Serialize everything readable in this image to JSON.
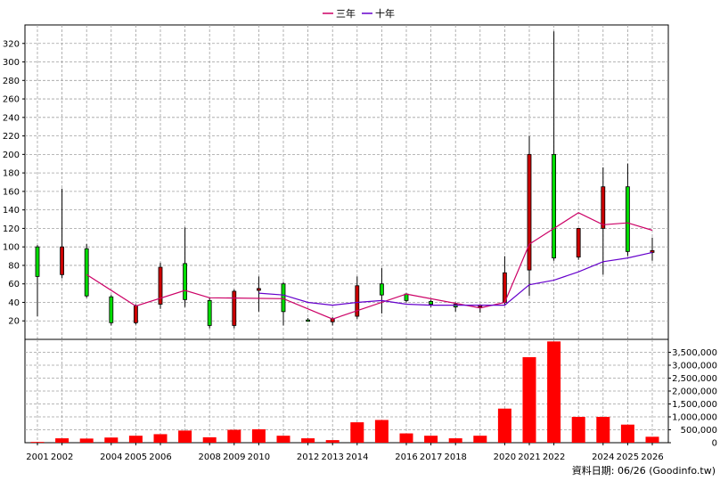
{
  "legend": [
    {
      "label": "三年",
      "color": "#cc0066"
    },
    {
      "label": "十年",
      "color": "#6600cc"
    }
  ],
  "credit": "資料日期: 06/26 (Goodinfo.tw)",
  "colors": {
    "up": "#00dd00",
    "down": "#cc0000",
    "volume": "#ff0000",
    "grid": "#a0a0a0"
  },
  "chart_data": [
    {
      "type": "candlestick",
      "ylim": [
        0,
        340
      ],
      "y_ticks": [
        20,
        40,
        60,
        80,
        100,
        120,
        140,
        160,
        180,
        200,
        220,
        240,
        260,
        280,
        300,
        320
      ],
      "x_tick_labels": [
        "2001",
        "2002",
        "2004",
        "2005",
        "2006",
        "2008",
        "2009",
        "2010",
        "2012",
        "2013",
        "2014",
        "2016",
        "2017",
        "2018",
        "2020",
        "2021",
        "2022",
        "2024",
        "2025",
        "2026"
      ],
      "x_tick_positions": [
        1,
        2,
        4,
        5,
        6,
        8,
        9,
        10,
        12,
        13,
        14,
        16,
        17,
        18,
        20,
        21,
        22,
        24,
        25,
        26
      ],
      "candles": [
        {
          "x": 1,
          "open": 68,
          "close": 100,
          "high": 102,
          "low": 25
        },
        {
          "x": 2,
          "open": 100,
          "close": 70,
          "high": 163,
          "low": 66
        },
        {
          "x": 3,
          "open": 47,
          "close": 98,
          "high": 103,
          "low": 45
        },
        {
          "x": 4,
          "open": 18,
          "close": 46,
          "high": 48,
          "low": 15
        },
        {
          "x": 5,
          "open": 36,
          "close": 18,
          "high": 38,
          "low": 16
        },
        {
          "x": 6,
          "open": 78,
          "close": 38,
          "high": 83,
          "low": 33
        },
        {
          "x": 7,
          "open": 43,
          "close": 82,
          "high": 121,
          "low": 35
        },
        {
          "x": 8,
          "open": 15,
          "close": 42,
          "high": 45,
          "low": 12
        },
        {
          "x": 9,
          "open": 52,
          "close": 15,
          "high": 54,
          "low": 12
        },
        {
          "x": 10,
          "open": 55,
          "close": 53,
          "high": 68,
          "low": 30
        },
        {
          "x": 11,
          "open": 30,
          "close": 60,
          "high": 62,
          "low": 15
        },
        {
          "x": 12,
          "open": 20,
          "close": 21,
          "high": 23,
          "low": 19
        },
        {
          "x": 13,
          "open": 22,
          "close": 19,
          "high": 24,
          "low": 15
        },
        {
          "x": 14,
          "open": 58,
          "close": 25,
          "high": 68,
          "low": 22
        },
        {
          "x": 15,
          "open": 48,
          "close": 60,
          "high": 77,
          "low": 28
        },
        {
          "x": 16,
          "open": 42,
          "close": 49,
          "high": 50,
          "low": 40
        },
        {
          "x": 17,
          "open": 38,
          "close": 41,
          "high": 43,
          "low": 35
        },
        {
          "x": 18,
          "open": 35,
          "close": 38,
          "high": 40,
          "low": 30
        },
        {
          "x": 19,
          "open": 37,
          "close": 35,
          "high": 38,
          "low": 29
        },
        {
          "x": 20,
          "open": 72,
          "close": 40,
          "high": 90,
          "low": 37
        },
        {
          "x": 21,
          "open": 200,
          "close": 75,
          "high": 220,
          "low": 47
        },
        {
          "x": 22,
          "open": 88,
          "close": 200,
          "high": 333,
          "low": 85
        },
        {
          "x": 23,
          "open": 120,
          "close": 89,
          "high": 120,
          "low": 86
        },
        {
          "x": 24,
          "open": 165,
          "close": 120,
          "high": 186,
          "low": 70
        },
        {
          "x": 25,
          "open": 95,
          "close": 165,
          "high": 190,
          "low": 90
        },
        {
          "x": 26,
          "open": 96,
          "close": 94,
          "high": 110,
          "low": 85
        }
      ],
      "series": [
        {
          "name": "三年",
          "color": "#cc0066",
          "points": [
            [
              3,
              70
            ],
            [
              5,
              36
            ],
            [
              7,
              53
            ],
            [
              8,
              45
            ],
            [
              11,
              44
            ],
            [
              13,
              22
            ],
            [
              16,
              49
            ],
            [
              19,
              34
            ],
            [
              20,
              40
            ],
            [
              21,
              103
            ],
            [
              23,
              137
            ],
            [
              24,
              124
            ],
            [
              25,
              126
            ],
            [
              26,
              118
            ]
          ]
        },
        {
          "name": "十年",
          "color": "#6600cc",
          "points": [
            [
              10,
              50
            ],
            [
              11,
              48
            ],
            [
              12,
              40
            ],
            [
              13,
              37
            ],
            [
              14,
              40
            ],
            [
              15,
              42
            ],
            [
              16,
              38
            ],
            [
              17,
              37
            ],
            [
              18,
              37
            ],
            [
              19,
              37
            ],
            [
              20,
              37
            ],
            [
              21,
              59
            ],
            [
              22,
              64
            ],
            [
              23,
              73
            ],
            [
              24,
              84
            ],
            [
              25,
              88
            ],
            [
              26,
              94
            ]
          ]
        }
      ]
    },
    {
      "type": "bar",
      "ylim": [
        0,
        4000000
      ],
      "y_ticks": [
        0,
        500000,
        1000000,
        1500000,
        2000000,
        2500000,
        3000000,
        3500000
      ],
      "y_tick_labels": [
        "0",
        "500,000",
        "1,000,000",
        "1,500,000",
        "2,000,000",
        "2,500,000",
        "3,000,000",
        "3,500,000"
      ],
      "x": [
        1,
        2,
        3,
        4,
        5,
        6,
        7,
        8,
        9,
        10,
        11,
        12,
        13,
        14,
        15,
        16,
        17,
        18,
        19,
        20,
        21,
        22,
        23,
        24,
        25,
        26
      ],
      "values": [
        30000,
        170000,
        160000,
        200000,
        270000,
        330000,
        470000,
        210000,
        500000,
        520000,
        270000,
        170000,
        100000,
        790000,
        880000,
        360000,
        270000,
        170000,
        270000,
        1320000,
        3310000,
        3920000,
        1000000,
        1000000,
        700000,
        230000
      ]
    }
  ]
}
